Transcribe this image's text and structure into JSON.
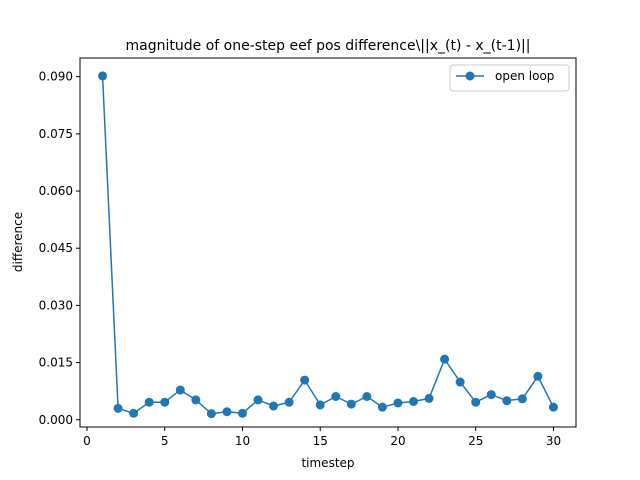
{
  "chart_data": {
    "type": "line",
    "title": "magnitude of one-step eef pos difference\\||x_(t) - x_(t-1)||",
    "xlabel": "timestep",
    "ylabel": "difference",
    "xlim": [
      -0.45,
      31.45
    ],
    "ylim": [
      -0.0019,
      0.0949
    ],
    "xticks": [
      0,
      5,
      10,
      15,
      20,
      25,
      30
    ],
    "xtick_labels": [
      "0",
      "5",
      "10",
      "15",
      "20",
      "25",
      "30"
    ],
    "yticks": [
      0.0,
      0.015,
      0.03,
      0.045,
      0.06,
      0.075,
      0.09
    ],
    "ytick_labels": [
      "0.000",
      "0.015",
      "0.030",
      "0.045",
      "0.060",
      "0.075",
      "0.090"
    ],
    "grid": false,
    "legend_position": "top-right",
    "series": [
      {
        "name": "open loop",
        "color": "#1f77b4",
        "marker": "circle",
        "x": [
          1,
          2,
          3,
          4,
          5,
          6,
          7,
          8,
          9,
          10,
          11,
          12,
          13,
          14,
          15,
          16,
          17,
          18,
          19,
          20,
          21,
          22,
          23,
          24,
          25,
          26,
          27,
          28,
          29,
          30
        ],
        "values": [
          0.0902,
          0.003,
          0.0017,
          0.0046,
          0.0046,
          0.0078,
          0.0052,
          0.0016,
          0.0021,
          0.0017,
          0.0052,
          0.0036,
          0.0046,
          0.0104,
          0.0039,
          0.0061,
          0.0041,
          0.0061,
          0.0033,
          0.0044,
          0.0048,
          0.0056,
          0.0159,
          0.0099,
          0.0046,
          0.0066,
          0.005,
          0.0055,
          0.0114,
          0.0033
        ]
      }
    ]
  }
}
